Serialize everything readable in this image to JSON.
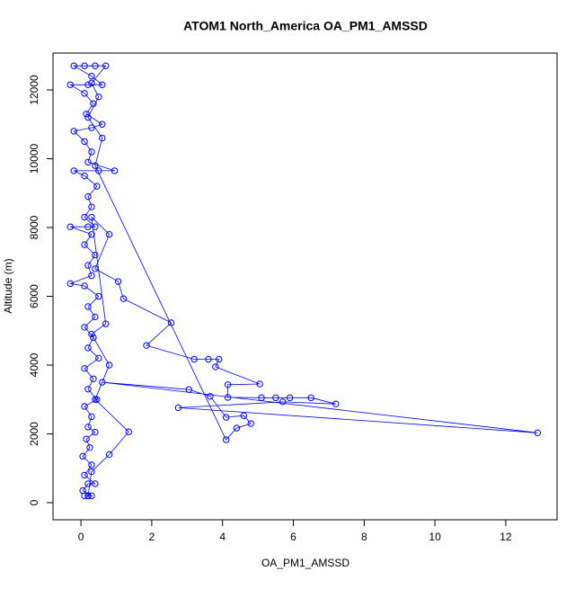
{
  "chart_data": {
    "type": "line",
    "title": "ATOM1 North_America OA_PM1_AMSSD",
    "x_label": "OA_PM1_AMSSD",
    "y_label": "Altitude (m)",
    "color": "#0000ff",
    "markers": "open-circle",
    "xlim": [
      -0.79,
      13.45
    ],
    "ylim": [
      -497,
      13072
    ],
    "xticks": [
      0,
      2,
      4,
      6,
      8,
      10,
      12
    ],
    "yticks": [
      0,
      2000,
      4000,
      6000,
      8000,
      10000,
      12000
    ],
    "x": [
      0.2,
      0.1,
      0.3,
      0.05,
      0.2,
      0.4,
      0.1,
      0.3,
      0.05,
      0.25,
      0.15,
      0.4,
      0.2,
      0.3,
      0.1,
      0.45,
      0.2,
      0.35,
      0.1,
      0.5,
      0.2,
      0.35,
      0.1,
      0.4,
      0.2,
      0.5,
      0.1,
      -0.3,
      0.3,
      0.2,
      0.4,
      0.1,
      0.3,
      -0.3,
      0.2,
      0.4,
      0.1,
      0.3,
      0.2,
      0.45,
      0.1,
      -0.2,
      0.5,
      0.95,
      0.2,
      0.3,
      0.1,
      -0.2,
      0.3,
      0.6,
      0.15,
      0.35,
      0.1,
      -0.3,
      0.2,
      0.6,
      0.3,
      -0.2,
      0.1,
      0.4,
      0.7,
      0.3,
      0.5,
      0.2,
      0.6,
      0.4,
      4.1,
      4.4,
      4.8,
      4.6,
      4.1,
      3.65,
      3.05,
      0.6,
      12.9,
      2.75,
      5.7,
      7.2,
      6.5,
      5.9,
      5.5,
      5.1,
      4.15,
      4.15,
      5.05,
      3.8,
      3.9,
      3.6,
      3.2,
      1.85,
      2.55,
      1.2,
      1.05,
      0.4,
      0.8,
      0.3,
      0.7,
      0.3,
      0.8,
      0.4,
      1.35,
      0.8,
      0.3,
      0.2
    ],
    "values": [
      200,
      200,
      200,
      350,
      550,
      550,
      800,
      1100,
      1350,
      1600,
      1850,
      2050,
      2200,
      2500,
      2800,
      3000,
      3300,
      3600,
      3900,
      4200,
      4500,
      4800,
      5100,
      5400,
      5700,
      6000,
      6300,
      6370,
      6600,
      6900,
      7200,
      7500,
      7800,
      8020,
      8020,
      8020,
      8300,
      8600,
      8900,
      9200,
      9500,
      9650,
      9650,
      9650,
      9900,
      10200,
      10500,
      10800,
      10900,
      11000,
      11300,
      11600,
      11900,
      12150,
      12150,
      12150,
      12400,
      12700,
      12700,
      12700,
      12700,
      12200,
      11800,
      11200,
      10600,
      9800,
      1830,
      2170,
      2300,
      2530,
      2480,
      3090,
      3290,
      3500,
      2030,
      2760,
      2930,
      2870,
      3050,
      3050,
      3050,
      3050,
      3060,
      3430,
      3450,
      3950,
      4170,
      4170,
      4170,
      4570,
      5230,
      5930,
      6430,
      6800,
      7800,
      8300,
      5200,
      4900,
      4000,
      3000,
      2060,
      1400,
      900,
      200
    ]
  }
}
